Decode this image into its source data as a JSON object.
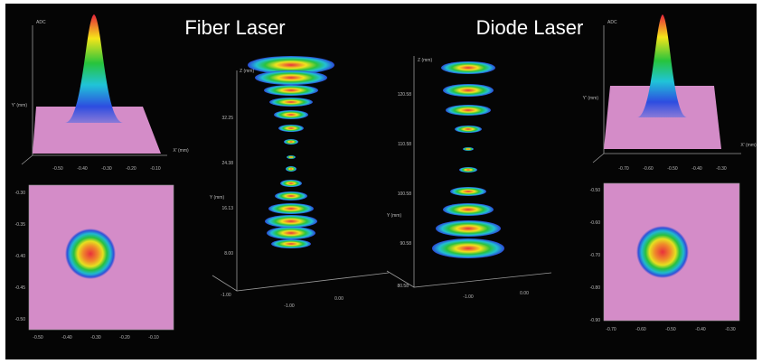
{
  "fiber_title": "Fiber Laser",
  "diode_title": "Diode Laser",
  "left_profile": {
    "z_label": "ADC",
    "y_label": "Y' (mm)",
    "x_label": "X' (mm)",
    "x_ticks": [
      "-0.50",
      "-0.40",
      "-0.30",
      "-0.20",
      "-0.10"
    ]
  },
  "left_map": {
    "x_ticks": [
      "-0.50",
      "-0.40",
      "-0.30",
      "-0.20",
      "-0.10"
    ],
    "y_ticks": [
      "-0.30",
      "-0.35",
      "-0.40",
      "-0.45",
      "-0.50"
    ]
  },
  "fiber_caustic": {
    "z_label": "Z (mm)",
    "y_label": "Y (mm)",
    "z_ticks": [
      "32.25",
      "24.38",
      "16.13",
      "8.00"
    ],
    "x_ticks": [
      "-1.00",
      "0.00"
    ],
    "origin_label": "-1.00"
  },
  "diode_caustic": {
    "z_label": "Z (mm)",
    "y_label": "Y (mm)",
    "z_ticks": [
      "120.58",
      "110.58",
      "100.58",
      "90.58"
    ],
    "x_ticks": [
      "-1.00",
      "0.00"
    ],
    "origin_label": "80.58"
  },
  "right_profile": {
    "z_label": "ADC",
    "y_label": "Y' (mm)",
    "x_label": "X' (mm)",
    "x_ticks": [
      "-0.70",
      "-0.60",
      "-0.50",
      "-0.40",
      "-0.30"
    ]
  },
  "right_map": {
    "x_ticks": [
      "-0.70",
      "-0.60",
      "-0.50",
      "-0.40",
      "-0.30"
    ],
    "y_ticks": [
      "-0.50",
      "-0.60",
      "-0.70",
      "-0.80",
      "-0.90"
    ]
  }
}
